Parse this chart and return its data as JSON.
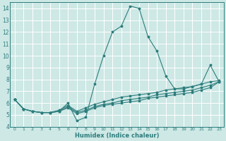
{
  "title": "",
  "xlabel": "Humidex (Indice chaleur)",
  "xlim": [
    -0.5,
    23.5
  ],
  "ylim": [
    4,
    14.5
  ],
  "yticks": [
    4,
    5,
    6,
    7,
    8,
    9,
    10,
    11,
    12,
    13,
    14
  ],
  "xticks": [
    0,
    1,
    2,
    3,
    4,
    5,
    6,
    7,
    8,
    9,
    10,
    11,
    12,
    13,
    14,
    15,
    16,
    17,
    18,
    19,
    20,
    21,
    22,
    23
  ],
  "bg_color": "#cde8e5",
  "line_color": "#2d7d7d",
  "grid_color": "#ffffff",
  "lines": [
    {
      "x": [
        0,
        1,
        2,
        3,
        4,
        5,
        6,
        7,
        8,
        9,
        10,
        11,
        12,
        13,
        14,
        15,
        16,
        17,
        18,
        19,
        20,
        21,
        22,
        23
      ],
      "y": [
        6.3,
        5.5,
        5.3,
        5.2,
        5.2,
        5.3,
        6.0,
        4.5,
        4.8,
        7.6,
        10.0,
        12.0,
        12.5,
        14.2,
        14.0,
        11.6,
        10.4,
        8.3,
        7.2,
        7.2,
        7.4,
        7.6,
        9.2,
        7.8
      ]
    },
    {
      "x": [
        0,
        1,
        2,
        3,
        4,
        5,
        6,
        7,
        8,
        9,
        10,
        11,
        12,
        13,
        14,
        15,
        16,
        17,
        18,
        19,
        20,
        21,
        22,
        23
      ],
      "y": [
        6.3,
        5.5,
        5.3,
        5.2,
        5.2,
        5.4,
        5.8,
        5.3,
        5.6,
        5.9,
        6.1,
        6.3,
        6.5,
        6.6,
        6.7,
        6.8,
        6.9,
        7.1,
        7.2,
        7.3,
        7.4,
        7.6,
        7.8,
        7.9
      ]
    },
    {
      "x": [
        0,
        1,
        2,
        3,
        4,
        5,
        6,
        7,
        8,
        9,
        10,
        11,
        12,
        13,
        14,
        15,
        16,
        17,
        18,
        19,
        20,
        21,
        22,
        23
      ],
      "y": [
        6.3,
        5.5,
        5.3,
        5.2,
        5.2,
        5.3,
        5.7,
        5.2,
        5.4,
        5.7,
        5.9,
        6.0,
        6.2,
        6.3,
        6.4,
        6.5,
        6.7,
        6.8,
        6.9,
        7.0,
        7.1,
        7.3,
        7.5,
        7.8
      ]
    },
    {
      "x": [
        0,
        1,
        2,
        3,
        4,
        5,
        6,
        7,
        8,
        9,
        10,
        11,
        12,
        13,
        14,
        15,
        16,
        17,
        18,
        19,
        20,
        21,
        22,
        23
      ],
      "y": [
        6.3,
        5.5,
        5.3,
        5.2,
        5.2,
        5.3,
        5.6,
        5.1,
        5.3,
        5.6,
        5.8,
        5.9,
        6.0,
        6.1,
        6.2,
        6.4,
        6.5,
        6.6,
        6.7,
        6.8,
        6.9,
        7.1,
        7.3,
        7.8
      ]
    }
  ]
}
